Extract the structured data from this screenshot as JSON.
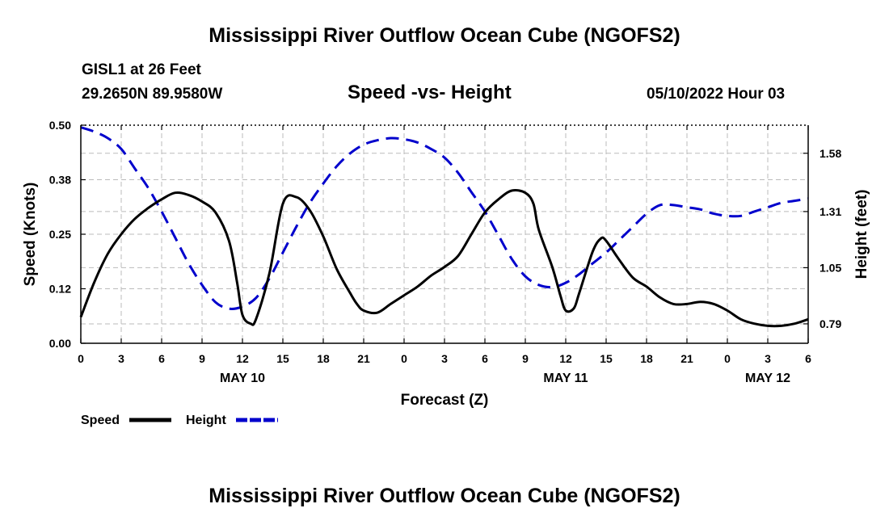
{
  "page": {
    "title_top": "Mississippi River Outflow Ocean Cube (NGOFS2)",
    "title_bottom": "Mississippi River Outflow Ocean Cube (NGOFS2)",
    "station": "GISL1 at 26 Feet",
    "coords": "29.2650N  89.9580W",
    "subtitle": "Speed -vs- Height",
    "datestamp": "05/10/2022 Hour 03"
  },
  "chart_data": {
    "type": "line",
    "title": "Speed -vs- Height",
    "xlabel": "Forecast (Z)",
    "xlim": [
      0,
      54
    ],
    "x_ticks": [
      {
        "x": 0,
        "label": "0"
      },
      {
        "x": 3,
        "label": "3"
      },
      {
        "x": 6,
        "label": "6"
      },
      {
        "x": 9,
        "label": "9"
      },
      {
        "x": 12,
        "label": "12"
      },
      {
        "x": 15,
        "label": "15"
      },
      {
        "x": 18,
        "label": "18"
      },
      {
        "x": 21,
        "label": "21"
      },
      {
        "x": 24,
        "label": "0"
      },
      {
        "x": 27,
        "label": "3"
      },
      {
        "x": 30,
        "label": "6"
      },
      {
        "x": 33,
        "label": "9"
      },
      {
        "x": 36,
        "label": "12"
      },
      {
        "x": 39,
        "label": "15"
      },
      {
        "x": 42,
        "label": "18"
      },
      {
        "x": 45,
        "label": "21"
      },
      {
        "x": 48,
        "label": "0"
      },
      {
        "x": 51,
        "label": "3"
      },
      {
        "x": 54,
        "label": "6"
      }
    ],
    "day_labels": [
      {
        "x": 12,
        "label": "MAY 10"
      },
      {
        "x": 36,
        "label": "MAY 11"
      },
      {
        "x": 51,
        "label": "MAY 12"
      }
    ],
    "y_left": {
      "label": "Speed (Knots)",
      "range": [
        0,
        0.5
      ],
      "ticks": [
        0.0,
        0.125,
        0.25,
        0.375,
        0.5
      ],
      "tick_labels": [
        "0.00",
        "0.12",
        "0.25",
        "0.38",
        "0.50"
      ]
    },
    "y_right": {
      "label": "Height (feet)",
      "range": [
        0.7,
        1.71
      ],
      "ticks": [
        0.79,
        1.05,
        1.31,
        1.58
      ],
      "tick_labels": [
        "0.79",
        "1.05",
        "1.31",
        "1.58"
      ]
    },
    "grid": true,
    "legend_position": "bottom-left",
    "series": [
      {
        "name": "Speed",
        "axis": "left",
        "color": "#000000",
        "dash": "solid",
        "x": [
          0,
          1,
          2,
          3,
          4,
          5,
          6,
          7,
          8,
          9,
          10,
          11,
          11.6,
          12,
          12.6,
          13,
          14,
          15,
          16,
          17,
          18,
          19,
          20,
          20.5,
          21,
          22,
          23,
          24,
          25,
          26,
          27,
          28,
          29,
          30,
          31,
          32,
          33,
          33.6,
          34,
          35,
          35.6,
          36,
          36.6,
          37,
          38,
          38.6,
          39,
          40,
          41,
          42,
          43,
          44,
          45,
          46,
          47,
          48,
          49,
          50,
          51,
          52,
          53,
          54
        ],
        "values": [
          0.06,
          0.14,
          0.205,
          0.25,
          0.285,
          0.31,
          0.33,
          0.345,
          0.34,
          0.325,
          0.3,
          0.235,
          0.14,
          0.065,
          0.045,
          0.055,
          0.16,
          0.32,
          0.335,
          0.305,
          0.245,
          0.17,
          0.115,
          0.09,
          0.075,
          0.07,
          0.09,
          0.11,
          0.13,
          0.155,
          0.175,
          0.2,
          0.25,
          0.3,
          0.33,
          0.35,
          0.345,
          0.32,
          0.26,
          0.175,
          0.11,
          0.075,
          0.08,
          0.115,
          0.21,
          0.24,
          0.235,
          0.19,
          0.15,
          0.13,
          0.105,
          0.09,
          0.09,
          0.095,
          0.09,
          0.075,
          0.055,
          0.045,
          0.04,
          0.04,
          0.045,
          0.055
        ]
      },
      {
        "name": "Height",
        "axis": "right",
        "color": "#0000cc",
        "dash": "dashed",
        "x": [
          0,
          1,
          2,
          3,
          4,
          5,
          6,
          7,
          8,
          9,
          10,
          11,
          12,
          13,
          14,
          15,
          16,
          17,
          18,
          19,
          20,
          21,
          22,
          23,
          24,
          25,
          26,
          27,
          28,
          29,
          30,
          31,
          32,
          33,
          34,
          35,
          36,
          37,
          38,
          39,
          40,
          41,
          42,
          43,
          44,
          45,
          46,
          47,
          48,
          49,
          50,
          51,
          52,
          53,
          54
        ],
        "values": [
          1.7,
          1.68,
          1.65,
          1.6,
          1.51,
          1.42,
          1.31,
          1.19,
          1.07,
          0.97,
          0.89,
          0.86,
          0.87,
          0.91,
          1.0,
          1.12,
          1.24,
          1.35,
          1.44,
          1.52,
          1.58,
          1.62,
          1.64,
          1.65,
          1.645,
          1.63,
          1.6,
          1.56,
          1.49,
          1.4,
          1.31,
          1.2,
          1.09,
          1.01,
          0.97,
          0.96,
          0.98,
          1.02,
          1.07,
          1.12,
          1.18,
          1.24,
          1.3,
          1.34,
          1.34,
          1.33,
          1.32,
          1.3,
          1.29,
          1.29,
          1.31,
          1.33,
          1.35,
          1.36,
          1.37
        ]
      }
    ],
    "legend": [
      {
        "label": "Speed",
        "color": "#000000",
        "dash": "solid"
      },
      {
        "label": "Height",
        "color": "#0000cc",
        "dash": "dashed"
      }
    ]
  }
}
